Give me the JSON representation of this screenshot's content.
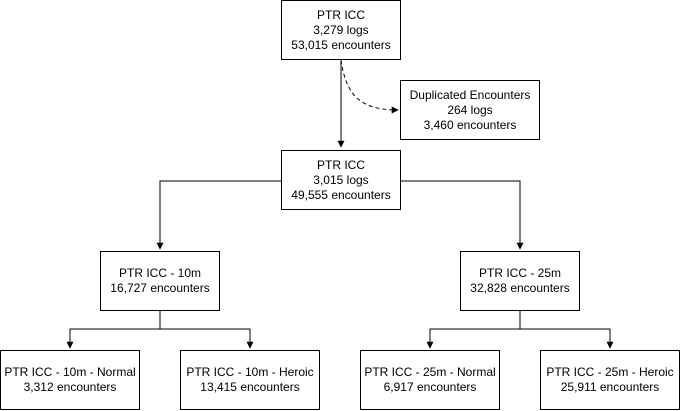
{
  "nodes": {
    "root": {
      "title": "PTR ICC",
      "lines": [
        "3,279 logs",
        "53,015 encounters"
      ]
    },
    "duplicated": {
      "title": "Duplicated Encounters",
      "lines": [
        "264 logs",
        "3,460 encounters"
      ]
    },
    "filtered": {
      "title": "PTR ICC",
      "lines": [
        "3,015 logs",
        "49,555 encounters"
      ]
    },
    "m10": {
      "title": "PTR ICC - 10m",
      "lines": [
        "16,727 encounters"
      ]
    },
    "m25": {
      "title": "PTR ICC - 25m",
      "lines": [
        "32,828 encounters"
      ]
    },
    "m10_normal": {
      "title": "PTR ICC - 10m - Normal",
      "lines": [
        "3,312 encounters"
      ]
    },
    "m10_heroic": {
      "title": "PTR ICC - 10m - Heroic",
      "lines": [
        "13,415 encounters"
      ]
    },
    "m25_normal": {
      "title": "PTR ICC - 25m - Normal",
      "lines": [
        "6,917 encounters"
      ]
    },
    "m25_heroic": {
      "title": "PTR ICC - 25m - Heroic",
      "lines": [
        "25,911 encounters"
      ]
    }
  },
  "edges": [
    {
      "from": "root",
      "to": "filtered",
      "style": "solid"
    },
    {
      "from": "root",
      "to": "duplicated",
      "style": "dashed"
    },
    {
      "from": "filtered",
      "to": "m10",
      "style": "solid"
    },
    {
      "from": "filtered",
      "to": "m25",
      "style": "solid"
    },
    {
      "from": "m10",
      "to": "m10_normal",
      "style": "solid"
    },
    {
      "from": "m10",
      "to": "m10_heroic",
      "style": "solid"
    },
    {
      "from": "m25",
      "to": "m25_normal",
      "style": "solid"
    },
    {
      "from": "m25",
      "to": "m25_heroic",
      "style": "solid"
    }
  ],
  "colors": {
    "stroke": "#000000",
    "fill": "#ffffff"
  }
}
